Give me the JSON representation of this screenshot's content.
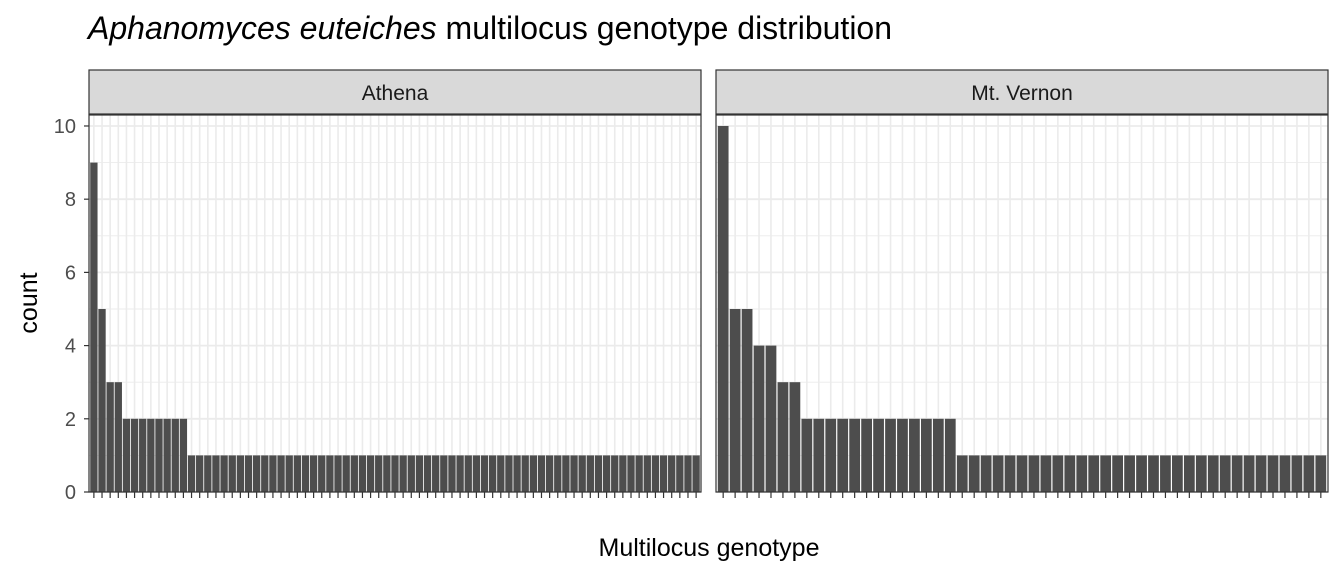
{
  "chart_data": {
    "type": "bar",
    "title_italic": "Aphanomyces euteiches",
    "title_rest": "multilocus genotype distribution",
    "xlabel": "Multilocus genotype",
    "ylabel": "count",
    "ylim": [
      0,
      10.3
    ],
    "yticks": [
      0,
      2,
      4,
      6,
      8,
      10
    ],
    "grid": true,
    "facets": [
      {
        "label": "Athena",
        "values": [
          9,
          5,
          3,
          3,
          2,
          2,
          2,
          2,
          2,
          2,
          2,
          2,
          1,
          1,
          1,
          1,
          1,
          1,
          1,
          1,
          1,
          1,
          1,
          1,
          1,
          1,
          1,
          1,
          1,
          1,
          1,
          1,
          1,
          1,
          1,
          1,
          1,
          1,
          1,
          1,
          1,
          1,
          1,
          1,
          1,
          1,
          1,
          1,
          1,
          1,
          1,
          1,
          1,
          1,
          1,
          1,
          1,
          1,
          1,
          1,
          1,
          1,
          1,
          1,
          1,
          1,
          1,
          1,
          1,
          1,
          1,
          1,
          1,
          1,
          1
        ]
      },
      {
        "label": "Mt. Vernon",
        "values": [
          10,
          5,
          5,
          4,
          4,
          3,
          3,
          2,
          2,
          2,
          2,
          2,
          2,
          2,
          2,
          2,
          2,
          2,
          2,
          2,
          1,
          1,
          1,
          1,
          1,
          1,
          1,
          1,
          1,
          1,
          1,
          1,
          1,
          1,
          1,
          1,
          1,
          1,
          1,
          1,
          1,
          1,
          1,
          1,
          1,
          1,
          1,
          1,
          1,
          1,
          1
        ]
      }
    ]
  }
}
